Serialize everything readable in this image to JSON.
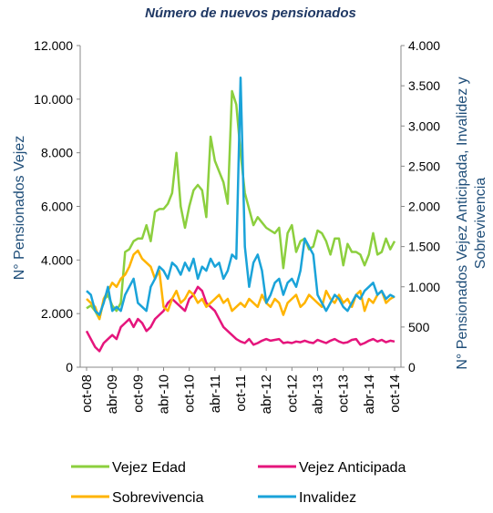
{
  "chart_data": {
    "type": "line",
    "title": "Número de nuevos pensionados",
    "y_label": "N° Pensionados Vejez",
    "y2_label": [
      "N° Pensionados Vejez Anticipada, Invalidez y",
      "Sobrevivencia"
    ],
    "categories": [
      "oct-08",
      null,
      null,
      null,
      null,
      null,
      "abr-09",
      null,
      null,
      null,
      null,
      null,
      "oct-09",
      null,
      null,
      null,
      null,
      null,
      "abr-10",
      null,
      null,
      null,
      null,
      null,
      "oct-10",
      null,
      null,
      null,
      null,
      null,
      "abr-11",
      null,
      null,
      null,
      null,
      null,
      "oct-11",
      null,
      null,
      null,
      null,
      null,
      "abr-12",
      null,
      null,
      null,
      null,
      null,
      "oct-12",
      null,
      null,
      null,
      null,
      null,
      "abr-13",
      null,
      null,
      null,
      null,
      null,
      "oct-13",
      null,
      null,
      null,
      null,
      null,
      "abr-14",
      null,
      null,
      null,
      null,
      null,
      "oct-14"
    ],
    "ylim": [
      0,
      12000
    ],
    "yticks": [
      0,
      {
        "value": 2000,
        "label": "2.000"
      },
      {
        "value": 4000,
        "label": "4.000"
      },
      {
        "value": 6000,
        "label": "6.000"
      },
      {
        "value": 8000,
        "label": "8.000"
      },
      {
        "value": 10000,
        "label": "10.000"
      },
      {
        "value": 12000,
        "label": "12.000"
      }
    ],
    "y2lim": [
      0,
      4000
    ],
    "y2ticks": [
      0,
      500,
      {
        "value": 1000,
        "label": "1.000"
      },
      {
        "value": 1500,
        "label": "1.500"
      },
      {
        "value": 2000,
        "label": "2.000"
      },
      {
        "value": 2500,
        "label": "2.500"
      },
      {
        "value": 3000,
        "label": "3.000"
      },
      {
        "value": 3500,
        "label": "3.500"
      },
      {
        "value": 4000,
        "label": "4.000"
      }
    ],
    "grid": false,
    "legend": "bottom",
    "series": [
      {
        "name": "Vejez Edad",
        "color": "#8ccf3e",
        "values": [
          2200,
          2300,
          2100,
          1800,
          2500,
          2700,
          2300,
          2100,
          2400,
          4300,
          4400,
          4700,
          4800,
          4800,
          5300,
          4700,
          5800,
          5900,
          5900,
          6100,
          6500,
          8000,
          6000,
          5200,
          6000,
          6600,
          6800,
          6600,
          5600,
          8600,
          7700,
          7300,
          6900,
          6100,
          10300,
          9800,
          8000,
          6500,
          5900,
          5300,
          5600,
          5400,
          5200,
          5100,
          5000,
          5200,
          3700,
          5000,
          5300,
          4300,
          4700,
          4800,
          4400,
          4500,
          5100,
          5000,
          4700,
          4200,
          4800,
          4800,
          3800,
          4600,
          4300,
          4300,
          4200,
          3800,
          4200,
          5000,
          4200,
          4300,
          4800,
          4400,
          4700
        ]
      },
      {
        "name": "Vejez Anticipada",
        "color": "#e5157c",
        "axis": "y2",
        "values": [
          450,
          350,
          250,
          200,
          300,
          350,
          400,
          350,
          500,
          550,
          600,
          500,
          600,
          550,
          450,
          500,
          600,
          650,
          700,
          800,
          850,
          800,
          750,
          700,
          850,
          900,
          1000,
          950,
          800,
          750,
          700,
          600,
          500,
          450,
          400,
          350,
          320,
          300,
          350,
          280,
          300,
          330,
          350,
          330,
          340,
          350,
          300,
          310,
          300,
          320,
          310,
          330,
          310,
          300,
          340,
          320,
          300,
          330,
          350,
          320,
          300,
          310,
          340,
          350,
          280,
          300,
          330,
          350,
          320,
          340,
          310,
          330,
          320
        ]
      },
      {
        "name": "Sobrevivencia",
        "color": "#ffb400",
        "axis": "y2",
        "values": [
          850,
          800,
          750,
          600,
          850,
          950,
          1050,
          1000,
          1100,
          1150,
          1250,
          1400,
          1450,
          1350,
          1300,
          1250,
          1100,
          1200,
          750,
          700,
          850,
          950,
          800,
          850,
          950,
          900,
          800,
          850,
          750,
          800,
          850,
          900,
          800,
          850,
          700,
          750,
          800,
          750,
          850,
          800,
          750,
          900,
          800,
          750,
          850,
          800,
          650,
          800,
          850,
          900,
          750,
          800,
          900,
          850,
          800,
          750,
          950,
          850,
          800,
          900,
          800,
          850,
          750,
          900,
          950,
          700,
          850,
          800,
          900,
          950,
          800,
          850,
          880
        ]
      },
      {
        "name": "Invalidez",
        "color": "#1aa3d9",
        "axis": "y2",
        "values": [
          950,
          900,
          700,
          650,
          800,
          1000,
          700,
          750,
          700,
          900,
          1000,
          1100,
          800,
          750,
          700,
          1000,
          1100,
          1250,
          1200,
          1100,
          1300,
          1250,
          1150,
          1300,
          1200,
          1350,
          1100,
          1250,
          1200,
          1350,
          1250,
          1300,
          1100,
          1200,
          1400,
          1350,
          3600,
          1500,
          1000,
          1300,
          1400,
          1200,
          800,
          900,
          1050,
          1100,
          900,
          1050,
          1100,
          1000,
          1200,
          1600,
          1500,
          1400,
          900,
          800,
          700,
          800,
          900,
          850,
          750,
          700,
          800,
          900,
          850,
          950,
          1000,
          1050,
          900,
          950,
          850,
          900,
          870
        ]
      }
    ]
  }
}
